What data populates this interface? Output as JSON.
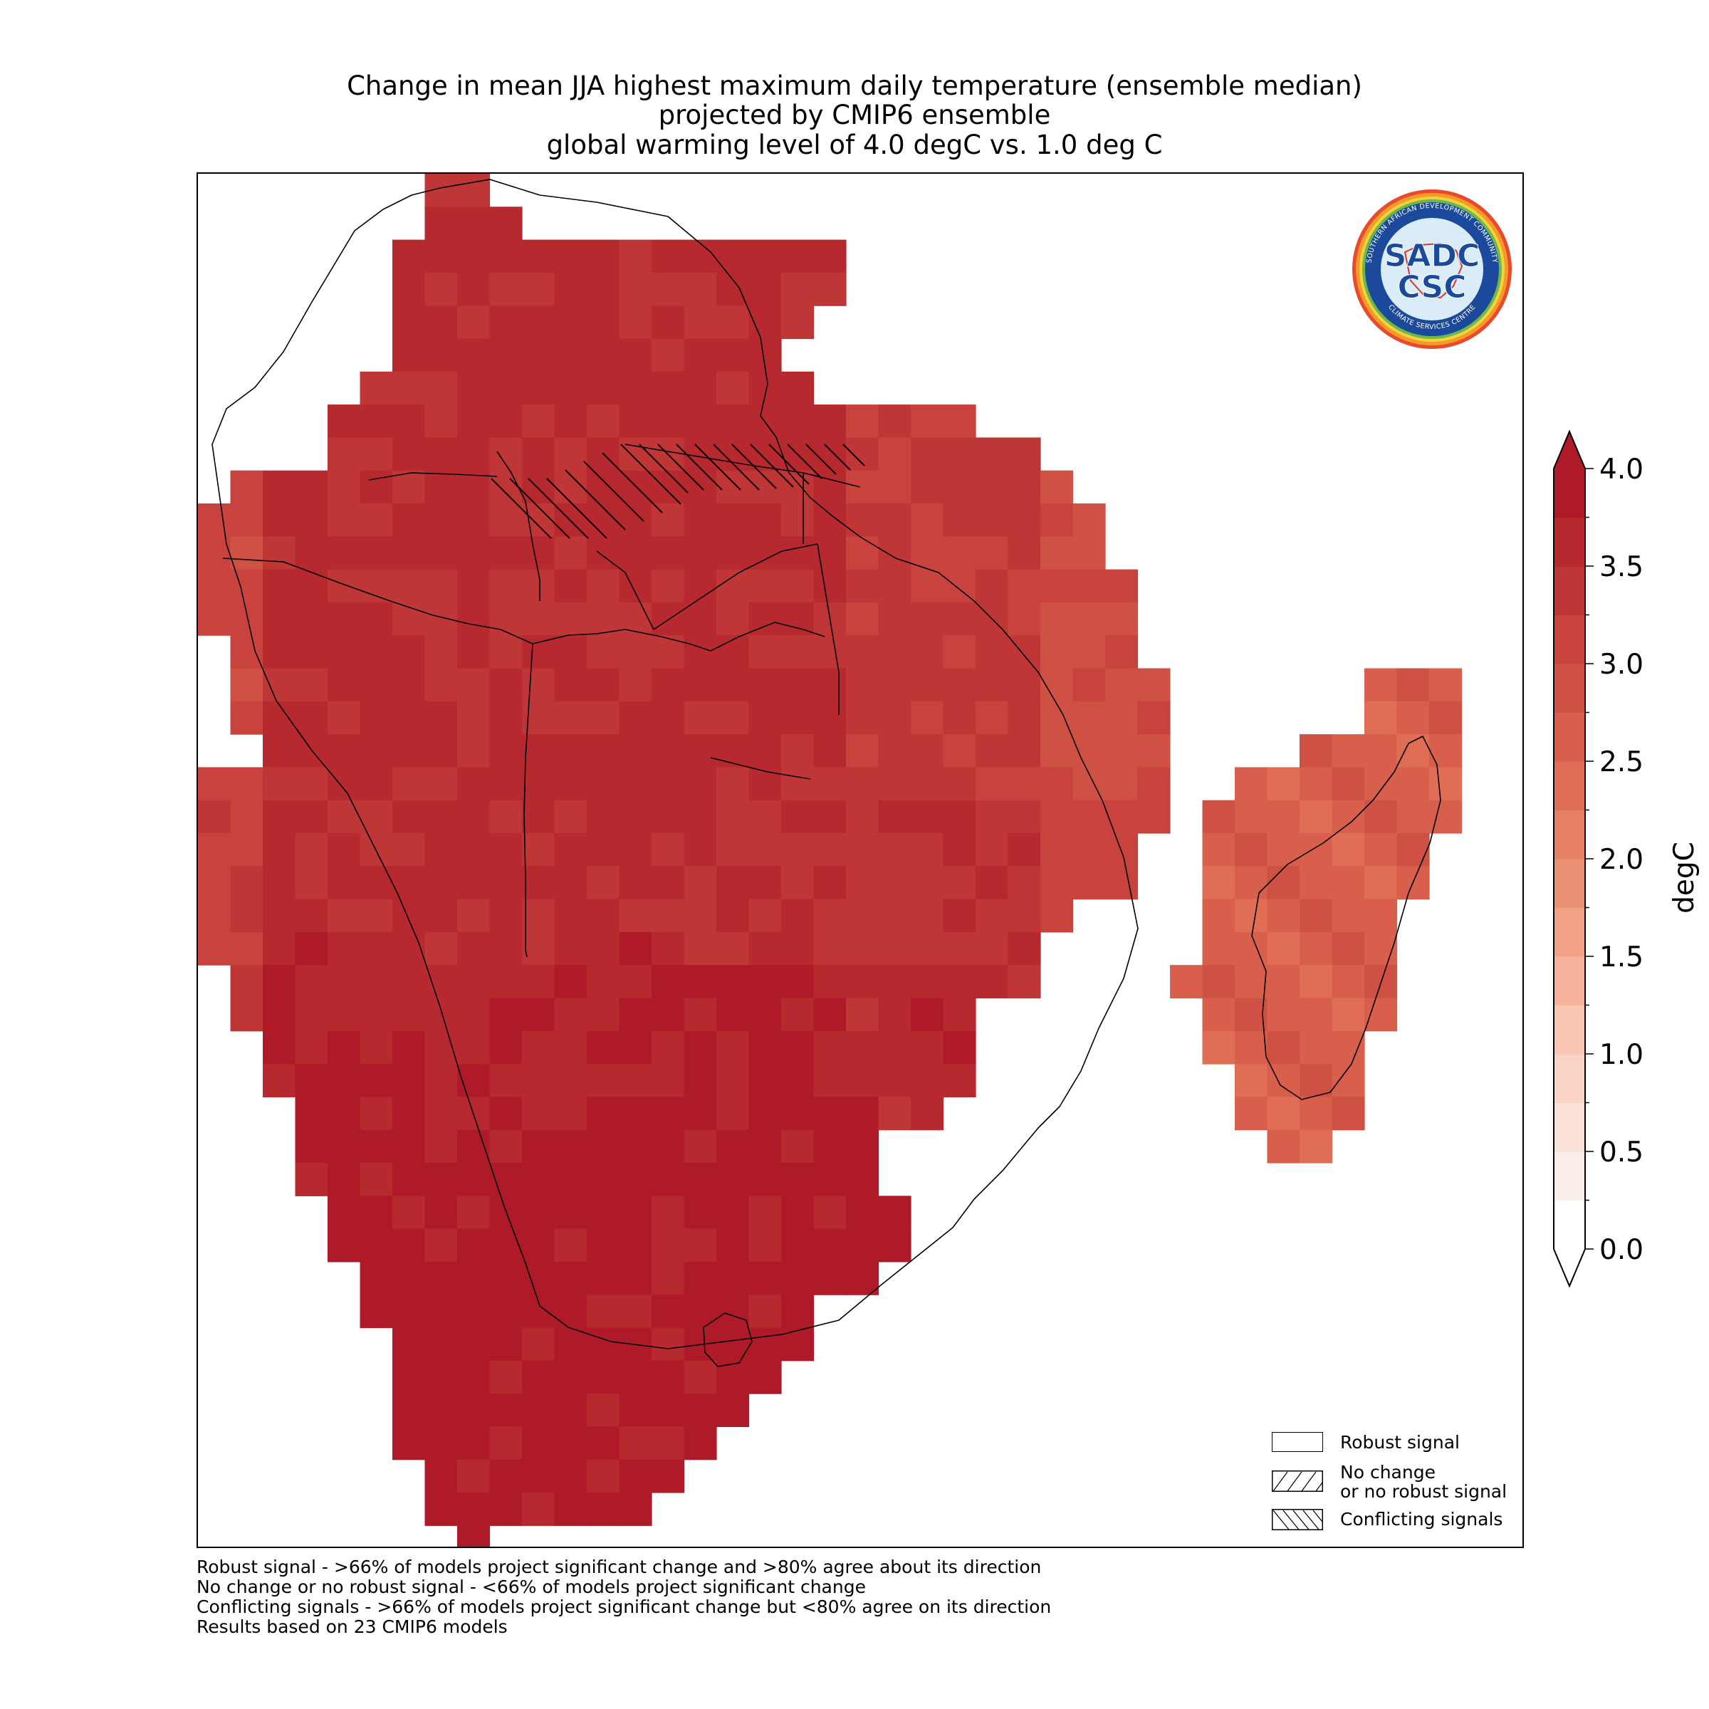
{
  "title": {
    "line1": "Change in mean JJA highest maximum daily temperature (ensemble median)",
    "line2": "projected by CMIP6 ensemble",
    "line3": "global warming level of 4.0 degC vs. 1.0 deg C"
  },
  "colorbar": {
    "label": "degC",
    "ticks": [
      "0.0",
      "0.5",
      "1.0",
      "1.5",
      "2.0",
      "2.5",
      "3.0",
      "3.5",
      "4.0"
    ],
    "min": 0.0,
    "max": 4.0,
    "step": 0.25,
    "extend": "both",
    "colors": [
      "#ffffff",
      "#fbeee8",
      "#fae2d8",
      "#f9d4c5",
      "#f8c5b0",
      "#f5b49b",
      "#f2a386",
      "#ec9274",
      "#e68064",
      "#df6e55",
      "#d75f4b",
      "#cf5144",
      "#c8433d",
      "#bf3636",
      "#b6292f",
      "#ae1a28"
    ]
  },
  "legend": {
    "robust": "Robust signal",
    "no_change_1": "No change",
    "no_change_2": "or no robust signal",
    "conflicting": "Conflicting signals"
  },
  "footnotes": [
    "Robust signal - >66% of models project significant change and >80% agree about its direction",
    "No change or no robust signal - <66% of models project significant change",
    "Conflicting signals - >66% of models project significant change but <80% agree on its direction",
    "Results based on 23 CMIP6 models"
  ],
  "logo": {
    "top_text": "SOUTHERN AFRICAN DEVELOPMENT COMMUNITY",
    "bottom_text": "CLIMATE SERVICES CENTRE",
    "mark_top": "SADC",
    "mark_bottom": "CSC"
  }
}
